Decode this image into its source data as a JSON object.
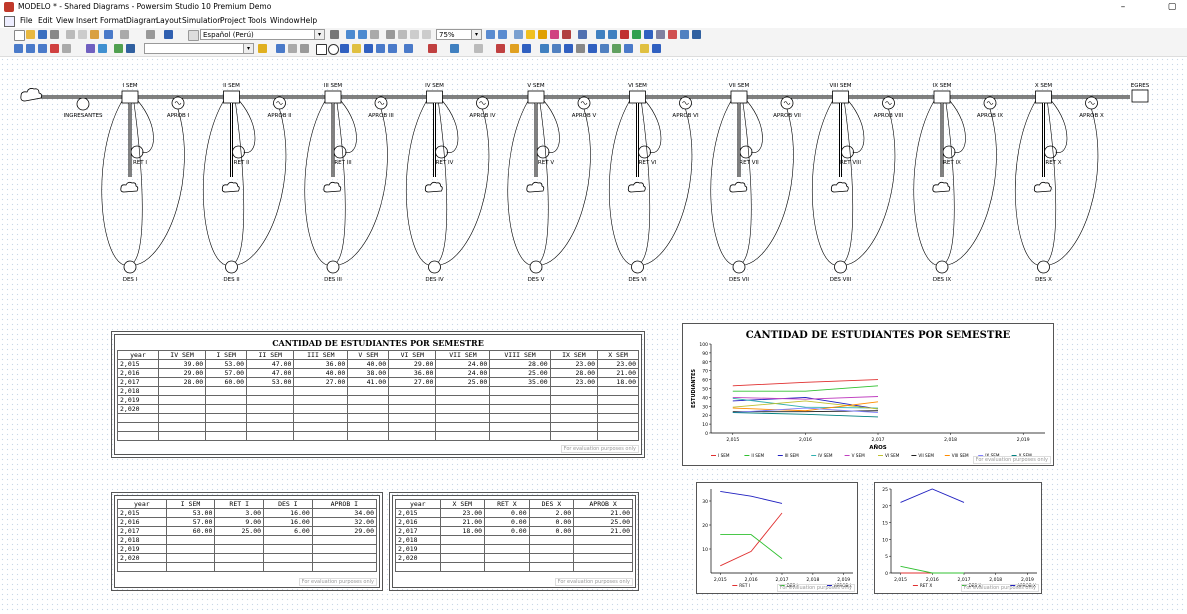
{
  "window": {
    "title": "MODELO * - Shared Diagrams - Powersim Studio 10 Premium Demo",
    "minimize": "–",
    "maximize": "▢"
  },
  "menu": [
    "File",
    "Edit",
    "View",
    "Insert",
    "Format",
    "Diagram",
    "Layout",
    "Simulation",
    "Project",
    "Tools",
    "Window",
    "Help"
  ],
  "toolbar": {
    "language": "Español (Perú)",
    "zoom": "75%"
  },
  "diagram": {
    "stocks": [
      "I SEM",
      "II SEM",
      "III SEM",
      "IV SEM",
      "V SEM",
      "VI SEM",
      "VII SEM",
      "VIII SEM",
      "IX SEM",
      "X SEM"
    ],
    "inflow": "INGRESANTES",
    "outflow_end": "EGRES",
    "approvals": [
      "APROB I",
      "APROB II",
      "APROB III",
      "APROB IV",
      "APROB V",
      "APROB VI",
      "APROB VII",
      "APROB VIII",
      "APROB IX",
      "APROB X"
    ],
    "retention": [
      "RET I",
      "RET II",
      "RET III",
      "RET IV",
      "RET V",
      "RET VI",
      "RET VII",
      "RET VIII",
      "RET IX",
      "RET X"
    ],
    "dropout": [
      "DES I",
      "DES II",
      "DES III",
      "DES IV",
      "DES V",
      "DES VI",
      "DES VII",
      "DES VIII",
      "DES IX",
      "DES X"
    ]
  },
  "main_table": {
    "title": "CANTIDAD DE ESTUDIANTES POR SEMESTRE",
    "headers": [
      "year",
      "IV SEM",
      "I SEM",
      "II SEM",
      "III SEM",
      "V SEM",
      "VI SEM",
      "VII SEM",
      "VIII SEM",
      "IX SEM",
      "X SEM"
    ],
    "rows": [
      [
        "2,015",
        "39.00",
        "53.00",
        "47.00",
        "36.00",
        "40.00",
        "29.00",
        "24.00",
        "28.00",
        "23.00",
        "23.00"
      ],
      [
        "2,016",
        "29.00",
        "57.00",
        "47.00",
        "40.00",
        "38.00",
        "36.00",
        "24.00",
        "25.00",
        "28.00",
        "21.00"
      ],
      [
        "2,017",
        "28.00",
        "60.00",
        "53.00",
        "27.00",
        "41.00",
        "27.00",
        "25.00",
        "35.00",
        "23.00",
        "18.00"
      ],
      [
        "2,018",
        "",
        "",
        "",
        "",
        "",
        "",
        "",
        "",
        "",
        ""
      ],
      [
        "2,019",
        "",
        "",
        "",
        "",
        "",
        "",
        "",
        "",
        "",
        ""
      ],
      [
        "2,020",
        "",
        "",
        "",
        "",
        "",
        "",
        "",
        "",
        "",
        ""
      ],
      [
        "",
        "",
        "",
        "",
        "",
        "",
        "",
        "",
        "",
        "",
        ""
      ],
      [
        "",
        "",
        "",
        "",
        "",
        "",
        "",
        "",
        "",
        "",
        ""
      ],
      [
        "",
        "",
        "",
        "",
        "",
        "",
        "",
        "",
        "",
        "",
        ""
      ]
    ],
    "watermark": "For evaluation purposes only"
  },
  "table_first": {
    "headers": [
      "year",
      "I SEM",
      "RET I",
      "DES I",
      "APROB I"
    ],
    "rows": [
      [
        "2,015",
        "53.00",
        "3.00",
        "16.00",
        "34.00"
      ],
      [
        "2,016",
        "57.00",
        "9.00",
        "16.00",
        "32.00"
      ],
      [
        "2,017",
        "60.00",
        "25.00",
        "6.00",
        "29.00"
      ],
      [
        "2,018",
        "",
        "",
        "",
        ""
      ],
      [
        "2,019",
        "",
        "",
        "",
        ""
      ],
      [
        "2,020",
        "",
        "",
        "",
        ""
      ],
      [
        "",
        "",
        "",
        "",
        ""
      ]
    ],
    "watermark": "For evaluation purposes only"
  },
  "table_last": {
    "headers": [
      "year",
      "X SEM",
      "RET X",
      "DES X",
      "APROB X"
    ],
    "rows": [
      [
        "2,015",
        "23.00",
        "0.00",
        "2.00",
        "21.00"
      ],
      [
        "2,016",
        "21.00",
        "0.00",
        "0.00",
        "25.00"
      ],
      [
        "2,017",
        "18.00",
        "0.00",
        "0.00",
        "21.00"
      ],
      [
        "2,018",
        "",
        "",
        "",
        ""
      ],
      [
        "2,019",
        "",
        "",
        "",
        ""
      ],
      [
        "2,020",
        "",
        "",
        "",
        ""
      ],
      [
        "",
        "",
        "",
        "",
        ""
      ]
    ],
    "watermark": "For evaluation purposes only"
  },
  "chart_data": [
    {
      "type": "line",
      "title": "CANTIDAD DE ESTUDIANTES POR SEMESTRE",
      "xlabel": "AÑOS",
      "ylabel": "ESTUDIANTES",
      "x": [
        2015,
        2016,
        2017
      ],
      "xticks": [
        "2,015",
        "2,016",
        "2,017",
        "2,018",
        "2,019"
      ],
      "xlim": [
        2014.7,
        2019.3
      ],
      "ylim": [
        0,
        100
      ],
      "yticks": [
        "0",
        "10",
        "20",
        "30",
        "40",
        "50",
        "60",
        "70",
        "80",
        "90",
        "100"
      ],
      "series": [
        {
          "name": "I SEM",
          "color": "#e03030",
          "values": [
            53,
            57,
            60
          ]
        },
        {
          "name": "II SEM",
          "color": "#30c030",
          "values": [
            47,
            47,
            53
          ]
        },
        {
          "name": "III SEM",
          "color": "#2020c0",
          "values": [
            36,
            40,
            27
          ]
        },
        {
          "name": "IV SEM",
          "color": "#30b0b0",
          "values": [
            39,
            29,
            28
          ]
        },
        {
          "name": "V SEM",
          "color": "#c040c0",
          "values": [
            40,
            38,
            41
          ]
        },
        {
          "name": "VI SEM",
          "color": "#c0c030",
          "values": [
            29,
            36,
            27
          ]
        },
        {
          "name": "VII SEM",
          "color": "#202020",
          "values": [
            24,
            24,
            25
          ]
        },
        {
          "name": "VIII SEM",
          "color": "#ff8c00",
          "values": [
            28,
            25,
            35
          ]
        },
        {
          "name": "IX SEM",
          "color": "#8080ff",
          "values": [
            23,
            28,
            23
          ]
        },
        {
          "name": "X SEM",
          "color": "#008080",
          "values": [
            23,
            21,
            18
          ]
        }
      ],
      "watermark": "For evaluation purposes only"
    },
    {
      "type": "line",
      "x": [
        2015,
        2016,
        2017
      ],
      "xticks": [
        "2,015",
        "2,016",
        "2,017",
        "2,018",
        "2,019"
      ],
      "xlim": [
        2014.7,
        2019.3
      ],
      "ylim": [
        0,
        35
      ],
      "yticks": [
        "10",
        "20",
        "30"
      ],
      "series": [
        {
          "name": "RET I",
          "color": "#e03030",
          "values": [
            3,
            9,
            25
          ]
        },
        {
          "name": "DES I",
          "color": "#30c030",
          "values": [
            16,
            16,
            6
          ]
        },
        {
          "name": "APROB I",
          "color": "#2020c0",
          "values": [
            34,
            32,
            29
          ]
        }
      ],
      "watermark": "For evaluation purposes only"
    },
    {
      "type": "line",
      "x": [
        2015,
        2016,
        2017
      ],
      "xticks": [
        "2,015",
        "2,016",
        "2,017",
        "2,018",
        "2,019"
      ],
      "xlim": [
        2014.7,
        2019.3
      ],
      "ylim": [
        0,
        25
      ],
      "yticks": [
        "0",
        "5",
        "10",
        "15",
        "20",
        "25"
      ],
      "series": [
        {
          "name": "RET X",
          "color": "#e03030",
          "values": [
            0,
            0,
            0
          ]
        },
        {
          "name": "DES X",
          "color": "#30c030",
          "values": [
            2,
            0,
            0
          ]
        },
        {
          "name": "APROB X",
          "color": "#2020c0",
          "values": [
            21,
            25,
            21
          ]
        }
      ],
      "watermark": "For evaluation purposes only"
    }
  ]
}
